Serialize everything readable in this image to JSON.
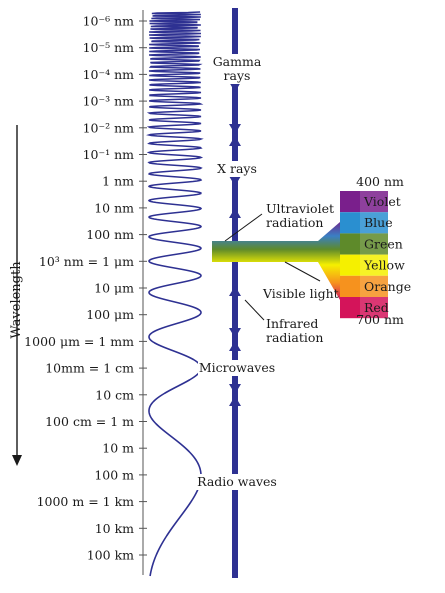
{
  "colors": {
    "arrow": "#2e3192",
    "wave": "#2e3192",
    "axis": "#555555",
    "text": "#1a1a1a"
  },
  "axis_title": "Wavelength",
  "ticks": [
    {
      "label": "10⁻⁶ nm"
    },
    {
      "label": "10⁻⁵ nm"
    },
    {
      "label": "10⁻⁴ nm"
    },
    {
      "label": "10⁻³ nm"
    },
    {
      "label": "10⁻² nm"
    },
    {
      "label": "10⁻¹ nm"
    },
    {
      "label": "1 nm"
    },
    {
      "label": "10 nm"
    },
    {
      "label": "100 nm"
    },
    {
      "label": "10³ nm = 1 μm"
    },
    {
      "label": "10 μm"
    },
    {
      "label": "100 μm"
    },
    {
      "label": "1000 μm = 1 mm"
    },
    {
      "label": "10mm = 1 cm"
    },
    {
      "label": "10 cm"
    },
    {
      "label": "100 cm = 1 m"
    },
    {
      "label": "10 m"
    },
    {
      "label": "100 m"
    },
    {
      "label": "1000 m = 1 km"
    },
    {
      "label": "10 km"
    },
    {
      "label": "100 km"
    }
  ],
  "bands": [
    {
      "lines": [
        "Gamma",
        "rays"
      ]
    },
    {
      "lines": [
        "X rays"
      ]
    },
    {
      "lines": [
        "Ultraviolet",
        "radiation"
      ]
    },
    {
      "lines": [
        "Visible light"
      ]
    },
    {
      "lines": [
        "Infrared",
        "radiation"
      ]
    },
    {
      "lines": [
        "Microwaves"
      ]
    },
    {
      "lines": [
        "Radio waves"
      ]
    }
  ],
  "visible_spectrum": {
    "top_label": "400 nm",
    "bottom_label": "700 nm",
    "colors": [
      {
        "name": "Violet",
        "hex": "#7a1f8c"
      },
      {
        "name": "Blue",
        "hex": "#2a8fd0"
      },
      {
        "name": "Green",
        "hex": "#5e8a2a"
      },
      {
        "name": "Yellow",
        "hex": "#f5f000"
      },
      {
        "name": "Orange",
        "hex": "#f6921e"
      },
      {
        "name": "Red",
        "hex": "#d4145a"
      }
    ]
  }
}
